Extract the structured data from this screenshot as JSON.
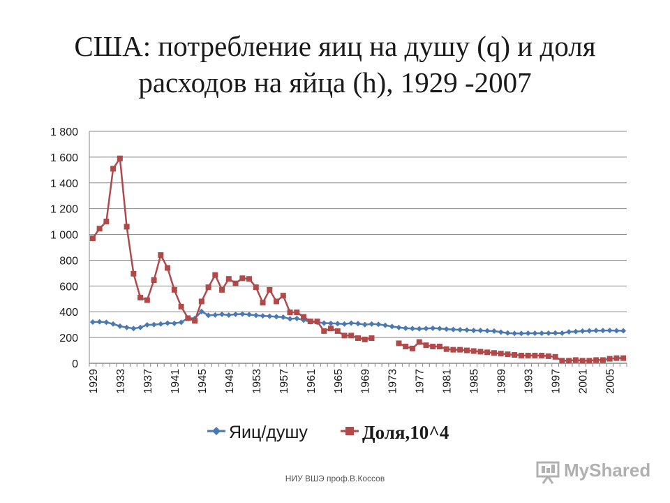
{
  "slide": {
    "title_line1": "США:  потребление яиц на душу (q) и доля",
    "title_line2": "расходов на яйца (h), 1929 -2007",
    "footer": "НИУ ВШЭ проф.В.Коссов",
    "logo_text": "MyShared"
  },
  "colors": {
    "series_q": "#4a78b0",
    "series_h": "#b04a4a",
    "grid": "#888888",
    "axis": "#888888"
  },
  "chart_data": {
    "type": "line",
    "title": "",
    "xlabel": "",
    "ylabel": "",
    "ylim": [
      0,
      1800
    ],
    "y_ticks": [
      0,
      200,
      400,
      600,
      800,
      1000,
      1200,
      1400,
      1600,
      1800
    ],
    "y_tick_labels": [
      "0",
      "200",
      "400",
      "600",
      "800",
      "1 000",
      "1 200",
      "1 400",
      "1 600",
      "1 800"
    ],
    "x_tick_labels": [
      "1929",
      "1933",
      "1937",
      "1941",
      "1945",
      "1949",
      "1953",
      "1957",
      "1961",
      "1965",
      "1969",
      "1973",
      "1977",
      "1981",
      "1985",
      "1989",
      "1993",
      "1997",
      "2001",
      "2005"
    ],
    "grid": true,
    "legend_position": "bottom",
    "x": [
      1929,
      1930,
      1931,
      1932,
      1933,
      1934,
      1935,
      1936,
      1937,
      1938,
      1939,
      1940,
      1941,
      1942,
      1943,
      1944,
      1945,
      1946,
      1947,
      1948,
      1949,
      1950,
      1951,
      1952,
      1953,
      1954,
      1955,
      1956,
      1957,
      1958,
      1959,
      1960,
      1961,
      1962,
      1963,
      1964,
      1965,
      1966,
      1967,
      1968,
      1969,
      1970,
      1971,
      1972,
      1973,
      1974,
      1975,
      1976,
      1977,
      1978,
      1979,
      1980,
      1981,
      1982,
      1983,
      1984,
      1985,
      1986,
      1987,
      1988,
      1989,
      1990,
      1991,
      1992,
      1993,
      1994,
      1995,
      1996,
      1997,
      1998,
      1999,
      2000,
      2001,
      2002,
      2003,
      2004,
      2005,
      2006,
      2007
    ],
    "series": [
      {
        "name": "Яиц/душу",
        "marker": "diamond",
        "values": [
          320,
          322,
          318,
          305,
          288,
          278,
          270,
          278,
          298,
          300,
          305,
          312,
          310,
          318,
          350,
          348,
          402,
          372,
          375,
          380,
          374,
          380,
          382,
          378,
          372,
          368,
          365,
          362,
          358,
          345,
          348,
          335,
          322,
          318,
          312,
          310,
          308,
          305,
          312,
          308,
          300,
          305,
          302,
          295,
          285,
          278,
          272,
          270,
          268,
          270,
          272,
          270,
          265,
          262,
          260,
          258,
          255,
          255,
          252,
          250,
          242,
          235,
          232,
          232,
          233,
          233,
          233,
          234,
          235,
          234,
          244,
          246,
          250,
          252,
          254,
          254,
          255,
          253,
          252
        ]
      },
      {
        "name": "Доля,10^4",
        "marker": "square",
        "values": [
          970,
          1045,
          1100,
          1510,
          1590,
          1060,
          695,
          510,
          490,
          645,
          840,
          740,
          570,
          440,
          350,
          330,
          480,
          590,
          685,
          570,
          655,
          620,
          660,
          655,
          590,
          470,
          570,
          480,
          525,
          395,
          395,
          360,
          325,
          325,
          250,
          270,
          250,
          215,
          215,
          195,
          185,
          195,
          null,
          null,
          null,
          155,
          130,
          115,
          165,
          140,
          130,
          130,
          110,
          105,
          105,
          100,
          95,
          90,
          85,
          80,
          75,
          70,
          65,
          60,
          60,
          60,
          60,
          55,
          50,
          20,
          20,
          25,
          20,
          20,
          25,
          25,
          35,
          40,
          40
        ]
      }
    ]
  }
}
